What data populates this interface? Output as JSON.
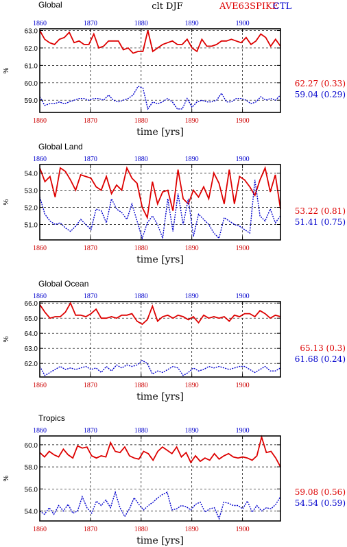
{
  "header": {
    "left": "Global",
    "center": "clt  DJF",
    "right_red": "AVE63SPIKE",
    "right_blue": "CTL",
    "colors": {
      "red": "#dd0000",
      "blue": "#0000cc"
    }
  },
  "chart_data": [
    {
      "type": "line",
      "title": "Global",
      "xlabel": "time [yrs]",
      "ylabel": "%",
      "xlim": [
        1860,
        1907.5
      ],
      "ylim": [
        58.3,
        63.1
      ],
      "yticks": [
        59.0,
        60.0,
        61.0,
        62.0,
        63.0
      ],
      "yticklabels": [
        "59.0",
        "60.0",
        "61.0",
        "62.0",
        "63.0"
      ],
      "xticks": [
        1860,
        1870,
        1880,
        1890,
        1900
      ],
      "xticklabels": [
        "1860",
        "1870",
        "1880",
        "1890",
        "1900"
      ],
      "grid": true,
      "series": [
        {
          "name": "AVE63SPIKE",
          "color": "#dd0000",
          "stat": "62.27 (0.33)",
          "values": [
            63.0,
            62.5,
            62.3,
            62.2,
            62.5,
            62.6,
            62.9,
            62.3,
            62.4,
            62.2,
            62.2,
            62.8,
            62.0,
            62.1,
            62.4,
            62.4,
            62.4,
            61.9,
            62.0,
            61.7,
            61.8,
            61.8,
            63.0,
            61.8,
            62.0,
            62.2,
            62.3,
            62.4,
            62.2,
            62.2,
            62.5,
            62.0,
            61.8,
            62.5,
            62.1,
            62.1,
            62.2,
            62.4,
            62.4,
            62.5,
            62.4,
            62.3,
            62.6,
            62.2,
            62.4,
            62.8,
            62.6,
            62.1,
            62.5,
            62.1
          ]
        },
        {
          "name": "CTL",
          "color": "#0000cc",
          "stat": "59.04 (0.29)",
          "values": [
            59.2,
            58.7,
            58.8,
            58.8,
            58.9,
            58.8,
            58.9,
            59.0,
            59.1,
            59.1,
            59.0,
            59.1,
            59.1,
            59.0,
            59.3,
            59.0,
            58.9,
            59.0,
            59.1,
            59.3,
            59.8,
            59.7,
            58.5,
            58.9,
            58.8,
            58.9,
            59.1,
            58.9,
            58.5,
            58.5,
            59.1,
            58.6,
            58.9,
            59.0,
            58.9,
            58.9,
            59.0,
            59.4,
            58.9,
            58.9,
            59.1,
            59.1,
            59.0,
            58.8,
            58.9,
            59.2,
            59.0,
            59.1,
            59.0,
            59.3
          ]
        }
      ]
    },
    {
      "type": "line",
      "title": "Global Land",
      "xlabel": "time [yrs]",
      "ylabel": "%",
      "xlim": [
        1860,
        1907.5
      ],
      "ylim": [
        50.1,
        54.5
      ],
      "yticks": [
        51.0,
        52.0,
        53.0,
        54.0
      ],
      "yticklabels": [
        "51.0",
        "52.0",
        "53.0",
        "54.0"
      ],
      "xticks": [
        1860,
        1870,
        1880,
        1890,
        1900
      ],
      "xticklabels": [
        "1860",
        "1870",
        "1880",
        "1890",
        "1900"
      ],
      "grid": true,
      "series": [
        {
          "name": "AVE63SPIKE",
          "color": "#dd0000",
          "stat": "53.22 (0.81)",
          "values": [
            54.3,
            53.5,
            53.8,
            52.6,
            54.3,
            54.1,
            53.6,
            53.0,
            53.9,
            53.8,
            53.7,
            53.2,
            53.0,
            53.8,
            52.8,
            53.3,
            53.0,
            54.3,
            53.7,
            53.4,
            52.0,
            51.4,
            53.5,
            52.2,
            52.9,
            53.0,
            51.8,
            54.2,
            52.5,
            52.2,
            53.0,
            52.6,
            53.2,
            52.5,
            54.0,
            53.4,
            52.2,
            54.2,
            52.2,
            53.8,
            53.6,
            53.2,
            52.7,
            53.6,
            54.3,
            52.9,
            53.9,
            51.9
          ]
        },
        {
          "name": "CTL",
          "color": "#0000cc",
          "stat": "51.41 (0.75)",
          "values": [
            52.6,
            51.6,
            51.2,
            51.0,
            51.1,
            50.8,
            50.6,
            50.9,
            51.3,
            51.0,
            50.7,
            51.9,
            51.8,
            51.1,
            52.5,
            51.9,
            51.7,
            51.3,
            52.2,
            51.2,
            50.2,
            51.1,
            51.5,
            51.0,
            50.2,
            52.5,
            50.6,
            52.8,
            51.0,
            52.5,
            50.3,
            51.6,
            51.3,
            51.0,
            50.5,
            50.2,
            51.4,
            51.2,
            51.0,
            50.9,
            50.7,
            50.5,
            53.6,
            51.5,
            51.2,
            51.9,
            51.1,
            51.5
          ]
        }
      ]
    },
    {
      "type": "line",
      "title": "Global Ocean",
      "xlabel": "time [yrs]",
      "ylabel": "%",
      "xlim": [
        1860,
        1907.5
      ],
      "ylim": [
        61.1,
        66.1
      ],
      "yticks": [
        62.0,
        63.0,
        64.0,
        65.0,
        66.0
      ],
      "yticklabels": [
        "62.0",
        "63.0",
        "64.0",
        "65.0",
        "66.0"
      ],
      "xticks": [
        1860,
        1870,
        1880,
        1890,
        1900
      ],
      "xticklabels": [
        "1860",
        "1870",
        "1880",
        "1890",
        "1900"
      ],
      "grid": true,
      "series": [
        {
          "name": "AVE63SPIKE",
          "color": "#dd0000",
          "stat": "65.13 (0.3)",
          "values": [
            65.9,
            65.4,
            65.0,
            65.1,
            65.1,
            65.4,
            66.0,
            65.2,
            65.2,
            65.1,
            65.3,
            65.6,
            65.0,
            65.0,
            65.1,
            65.0,
            65.2,
            65.2,
            65.3,
            64.8,
            64.6,
            64.9,
            65.8,
            64.8,
            65.1,
            65.2,
            65.0,
            65.2,
            65.1,
            64.9,
            65.1,
            64.7,
            65.2,
            65.0,
            65.1,
            65.0,
            65.1,
            64.8,
            65.2,
            65.1,
            65.3,
            65.3,
            65.1,
            65.5,
            65.3,
            65.0,
            65.2,
            65.1
          ]
        },
        {
          "name": "CTL",
          "color": "#0000cc",
          "stat": "61.68 (0.24)",
          "values": [
            61.8,
            61.2,
            61.4,
            61.6,
            61.8,
            61.6,
            61.7,
            61.6,
            61.7,
            61.8,
            61.6,
            61.7,
            61.4,
            61.8,
            61.5,
            61.9,
            61.7,
            61.9,
            61.8,
            61.9,
            62.2,
            62.0,
            61.3,
            61.5,
            61.4,
            61.6,
            61.8,
            61.7,
            61.2,
            61.4,
            61.7,
            61.5,
            61.6,
            61.8,
            61.7,
            61.8,
            61.7,
            61.6,
            61.7,
            61.8,
            61.8,
            61.6,
            61.4,
            61.6,
            61.8,
            61.5,
            61.5,
            61.7
          ]
        }
      ]
    },
    {
      "type": "line",
      "title": "Tropics",
      "xlabel": "time [yrs]",
      "ylabel": "%",
      "xlim": [
        1860,
        1907.5
      ],
      "ylim": [
        53.1,
        60.8
      ],
      "yticks": [
        54.0,
        56.0,
        58.0,
        60.0
      ],
      "yticklabels": [
        "54.0",
        "56.0",
        "58.0",
        "60.0"
      ],
      "xticks": [
        1860,
        1870,
        1880,
        1890,
        1900
      ],
      "xticklabels": [
        "1860",
        "1870",
        "1880",
        "1890",
        "1900"
      ],
      "grid": true,
      "series": [
        {
          "name": "AVE63SPIKE",
          "color": "#dd0000",
          "stat": "59.08 (0.56)",
          "values": [
            59.3,
            58.9,
            59.4,
            59.1,
            58.9,
            59.6,
            59.1,
            58.8,
            59.9,
            59.7,
            59.8,
            59.0,
            58.8,
            59.0,
            58.9,
            60.2,
            59.4,
            59.3,
            59.8,
            59.0,
            58.8,
            58.7,
            59.4,
            59.2,
            58.6,
            59.4,
            59.8,
            59.5,
            59.2,
            59.8,
            58.9,
            59.3,
            58.4,
            59.0,
            58.5,
            58.8,
            58.6,
            59.2,
            58.7,
            59.0,
            59.2,
            58.9,
            58.8,
            58.9,
            58.8,
            58.6,
            59.0,
            60.7,
            59.3,
            59.4,
            58.8,
            58.0
          ]
        },
        {
          "name": "CTL",
          "color": "#0000cc",
          "stat": "54.54 (0.59)",
          "values": [
            54.0,
            53.7,
            54.3,
            53.7,
            54.5,
            54.0,
            54.6,
            53.8,
            54.0,
            55.3,
            54.3,
            53.8,
            54.9,
            54.5,
            55.0,
            54.3,
            55.7,
            54.3,
            53.5,
            54.2,
            55.2,
            54.6,
            54.1,
            54.5,
            54.8,
            55.2,
            55.5,
            55.7,
            54.1,
            54.2,
            54.5,
            54.4,
            54.1,
            54.6,
            54.8,
            53.9,
            54.2,
            54.3,
            53.3,
            54.8,
            54.7,
            54.5,
            54.5,
            54.2,
            54.9,
            53.9,
            54.5,
            54.0,
            54.3,
            54.2,
            54.6,
            55.3
          ]
        }
      ]
    }
  ]
}
